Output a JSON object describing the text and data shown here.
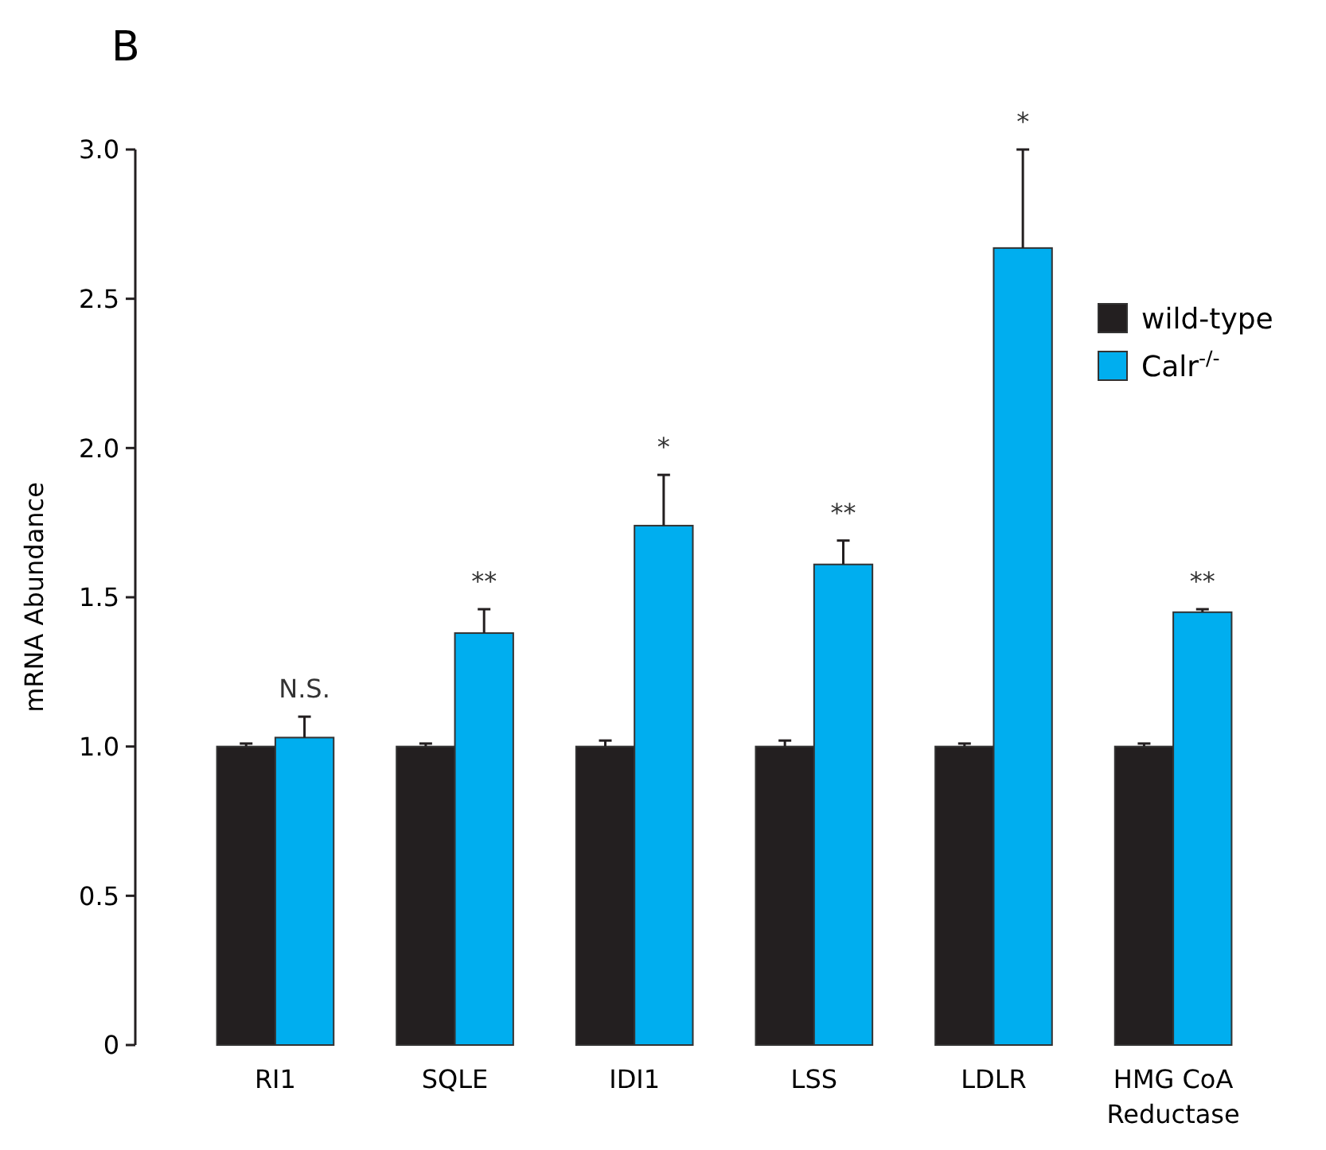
{
  "chart_data": {
    "type": "bar",
    "ylabel": "mRNA Abundance",
    "categories": [
      "RI1",
      "SQLE",
      "IDI1",
      "LSS",
      "LDLR",
      "HMG CoA Reductase"
    ],
    "series": [
      {
        "name": "wild-type",
        "color": "#231f20",
        "values": [
          1.0,
          1.0,
          1.0,
          1.0,
          1.0,
          1.0
        ],
        "errors": [
          0.01,
          0.01,
          0.02,
          0.02,
          0.01,
          0.01
        ]
      },
      {
        "name": "Calr$^{-/-}$",
        "color": "#00aeef",
        "values": [
          1.03,
          1.38,
          1.74,
          1.61,
          2.67,
          1.45
        ],
        "errors": [
          0.07,
          0.08,
          0.17,
          0.08,
          0.33,
          0.01
        ]
      }
    ],
    "ylim": [
      0,
      3.0
    ],
    "yticks": [
      0,
      {
        "value": 0.5,
        "label": "0.5"
      },
      {
        "value": 1,
        "label": "1.0"
      },
      {
        "value": 1.5,
        "label": "1.5"
      },
      {
        "value": 2,
        "label": "2.0"
      },
      {
        "value": 2.5,
        "label": "2.5"
      },
      {
        "value": 3,
        "label": "3.0"
      }
    ],
    "legend": "right",
    "annotations": [
      "B",
      "N.S.",
      "**",
      "*",
      "**",
      "*",
      "**"
    ]
  }
}
